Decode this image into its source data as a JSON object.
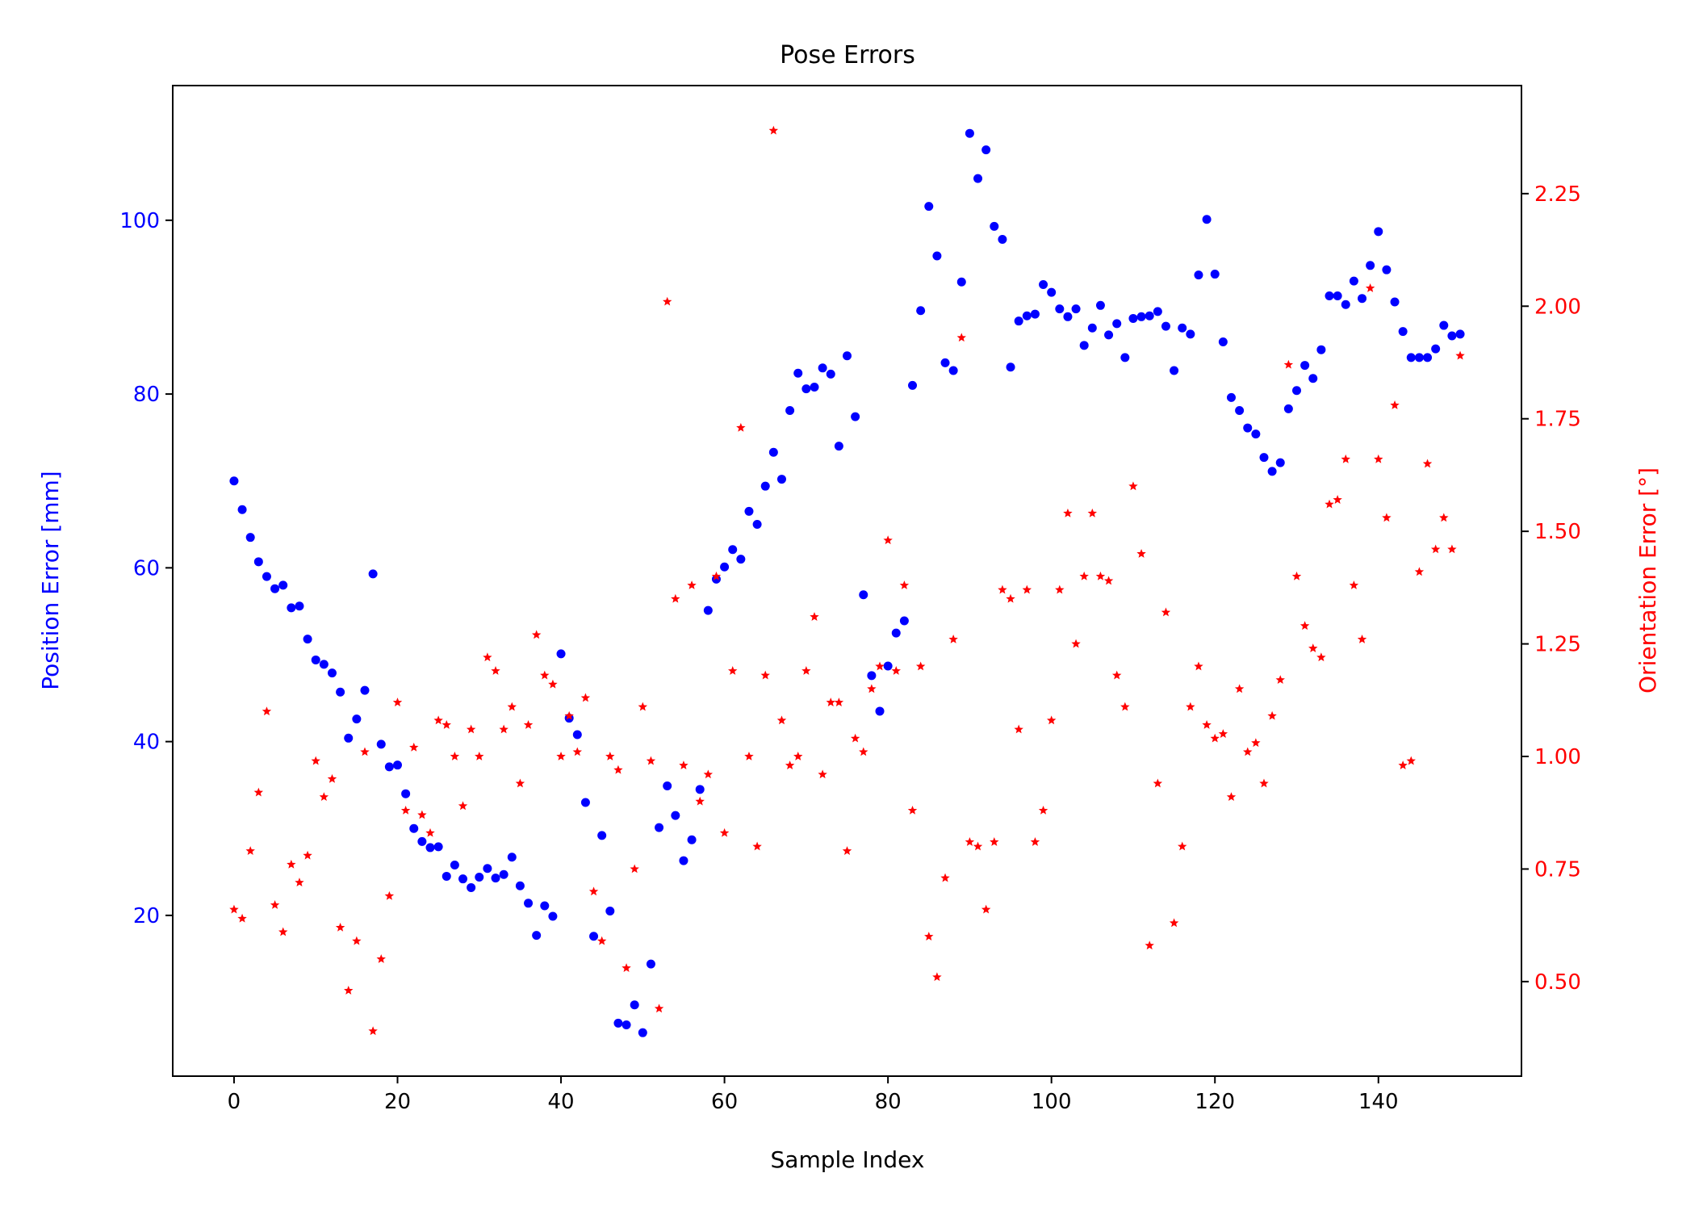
{
  "chart_data": {
    "type": "scatter",
    "title": "Pose Errors",
    "xlabel": "Sample Index",
    "ylabel": "Position Error [mm]",
    "y2label": "Orientation Error [°]",
    "xlim": [
      -7.5,
      157.5
    ],
    "ylim": [
      1.5,
      115.5
    ],
    "y2lim": [
      0.29,
      2.49
    ],
    "xticks": [
      0,
      20,
      40,
      60,
      80,
      100,
      120,
      140
    ],
    "yticks": [
      20,
      40,
      60,
      80,
      100
    ],
    "y2ticks": [
      0.5,
      0.75,
      1.0,
      1.25,
      1.5,
      1.75,
      2.0,
      2.25
    ],
    "y2tick_labels": [
      "0.50",
      "0.75",
      "1.00",
      "1.25",
      "1.50",
      "1.75",
      "2.00",
      "2.25"
    ],
    "grid": false,
    "legend": "none",
    "series": [
      {
        "axis": "left",
        "marker": "circle",
        "color": "#0000ff",
        "x": [
          0,
          1,
          2,
          3,
          4,
          5,
          6,
          7,
          8,
          9,
          10,
          11,
          12,
          13,
          14,
          15,
          16,
          17,
          18,
          19,
          20,
          21,
          22,
          23,
          24,
          25,
          26,
          27,
          28,
          29,
          30,
          31,
          32,
          33,
          34,
          35,
          36,
          37,
          38,
          39,
          40,
          41,
          42,
          43,
          44,
          45,
          46,
          47,
          48,
          49,
          50,
          51,
          52,
          53,
          54,
          55,
          56,
          57,
          58,
          59,
          60,
          61,
          62,
          63,
          64,
          65,
          66,
          67,
          68,
          69,
          70,
          71,
          72,
          73,
          74,
          75,
          76,
          77,
          78,
          79,
          80,
          81,
          82,
          83,
          84,
          85,
          86,
          87,
          88,
          89,
          90,
          91,
          92,
          93,
          94,
          95,
          96,
          97,
          98,
          99,
          100,
          101,
          102,
          103,
          104,
          105,
          106,
          107,
          108,
          109,
          110,
          111,
          112,
          113,
          114,
          115,
          116,
          117,
          118,
          119,
          120,
          121,
          122,
          123,
          124,
          125,
          126,
          127,
          128,
          129,
          130,
          131,
          132,
          133,
          134,
          135,
          136,
          137,
          138,
          139,
          140,
          141,
          142,
          143,
          144,
          145,
          146,
          147,
          148,
          149,
          150
        ],
        "y": [
          70,
          66.7,
          63.5,
          60.7,
          59,
          57.6,
          58,
          55.4,
          55.6,
          51.8,
          49.4,
          48.9,
          47.9,
          45.7,
          40.4,
          42.6,
          45.9,
          59.3,
          39.7,
          37.1,
          37.3,
          34,
          30,
          28.5,
          27.8,
          27.9,
          24.5,
          25.8,
          24.2,
          23.2,
          24.4,
          25.4,
          24.3,
          24.7,
          26.7,
          23.4,
          21.4,
          17.7,
          21.1,
          19.9,
          50.1,
          42.7,
          40.8,
          33,
          17.6,
          29.2,
          20.5,
          7.6,
          7.4,
          9.7,
          6.5,
          14.4,
          30.1,
          34.9,
          31.5,
          26.3,
          28.7,
          34.5,
          55.1,
          58.7,
          60.1,
          62.1,
          61,
          66.5,
          65,
          69.4,
          73.3,
          70.2,
          78.1,
          82.4,
          80.6,
          80.8,
          83,
          82.3,
          74,
          84.4,
          77.4,
          56.9,
          47.6,
          43.5,
          48.7,
          52.5,
          53.9,
          81,
          89.6,
          101.6,
          95.9,
          83.6,
          82.7,
          92.9,
          110,
          104.8,
          108.1,
          99.3,
          97.8,
          83.1,
          88.4,
          89,
          89.2,
          92.6,
          91.7,
          89.8,
          88.9,
          89.8,
          85.6,
          87.6,
          90.2,
          86.8,
          88.1,
          84.2,
          88.7,
          88.9,
          89,
          89.5,
          87.8,
          82.7,
          87.6,
          86.9,
          93.7,
          100.1,
          93.8,
          86,
          79.6,
          78.1,
          76.1,
          75.4,
          72.7,
          71.1,
          72.1,
          78.3,
          80.4,
          83.3,
          81.8,
          85.1,
          91.3,
          91.3,
          90.3,
          93,
          91,
          94.8,
          98.7,
          94.3,
          90.6,
          87.2,
          84.2,
          84.2,
          84.2,
          85.2,
          87.9,
          86.7,
          86.9
        ]
      },
      {
        "axis": "right",
        "marker": "star",
        "color": "#ff0000",
        "x": [
          0,
          1,
          2,
          3,
          4,
          5,
          6,
          7,
          8,
          9,
          10,
          11,
          12,
          13,
          14,
          15,
          16,
          17,
          18,
          19,
          20,
          21,
          22,
          23,
          24,
          25,
          26,
          27,
          28,
          29,
          30,
          31,
          32,
          33,
          34,
          35,
          36,
          37,
          38,
          39,
          40,
          41,
          42,
          43,
          44,
          45,
          46,
          47,
          48,
          49,
          50,
          51,
          52,
          53,
          54,
          55,
          56,
          57,
          58,
          59,
          60,
          61,
          62,
          63,
          64,
          65,
          66,
          67,
          68,
          69,
          70,
          71,
          72,
          73,
          74,
          75,
          76,
          77,
          78,
          79,
          80,
          81,
          82,
          83,
          84,
          85,
          86,
          87,
          88,
          89,
          90,
          91,
          92,
          93,
          94,
          95,
          96,
          97,
          98,
          99,
          100,
          101,
          102,
          103,
          104,
          105,
          106,
          107,
          108,
          109,
          110,
          111,
          112,
          113,
          114,
          115,
          116,
          117,
          118,
          119,
          120,
          121,
          122,
          123,
          124,
          125,
          126,
          127,
          128,
          129,
          130,
          131,
          132,
          133,
          134,
          135,
          136,
          137,
          138,
          139,
          140,
          141,
          142,
          143,
          144,
          145,
          146,
          147,
          148,
          149,
          150
        ],
        "y": [
          0.66,
          0.64,
          0.79,
          0.92,
          1.1,
          0.67,
          0.61,
          0.76,
          0.72,
          0.78,
          0.99,
          0.91,
          0.95,
          0.62,
          0.48,
          0.59,
          1.01,
          0.39,
          0.55,
          0.69,
          1.12,
          0.88,
          1.02,
          0.87,
          0.83,
          1.08,
          1.07,
          1,
          0.89,
          1.06,
          1,
          1.22,
          1.19,
          1.06,
          1.11,
          0.94,
          1.07,
          1.27,
          1.18,
          1.16,
          1,
          1.09,
          1.01,
          1.13,
          0.7,
          0.59,
          1,
          0.97,
          0.53,
          0.75,
          1.11,
          0.99,
          0.44,
          2.01,
          1.35,
          0.98,
          1.38,
          0.9,
          0.96,
          1.4,
          0.83,
          1.19,
          1.73,
          1,
          0.8,
          1.18,
          2.39,
          1.08,
          0.98,
          1,
          1.19,
          1.31,
          0.96,
          1.12,
          1.12,
          0.79,
          1.04,
          1.01,
          1.15,
          1.2,
          1.48,
          1.19,
          1.38,
          0.88,
          1.2,
          0.6,
          0.51,
          0.73,
          1.26,
          1.93,
          0.81,
          0.8,
          0.66,
          0.81,
          1.37,
          1.35,
          1.06,
          1.37,
          0.81,
          0.88,
          1.08,
          1.37,
          1.54,
          1.25,
          1.4,
          1.54,
          1.4,
          1.39,
          1.18,
          1.11,
          1.6,
          1.45,
          0.58,
          0.94,
          1.32,
          0.63,
          0.8,
          1.11,
          1.2,
          1.07,
          1.04,
          1.05,
          0.91,
          1.15,
          1.01,
          1.03,
          0.94,
          1.09,
          1.17,
          1.87,
          1.4,
          1.29,
          1.24,
          1.22,
          1.56,
          1.57,
          1.66,
          1.38,
          1.26,
          2.04,
          1.66,
          1.53,
          1.78,
          0.98,
          0.99,
          1.41,
          1.65,
          1.46,
          1.53,
          1.46,
          1.89
        ]
      }
    ]
  }
}
